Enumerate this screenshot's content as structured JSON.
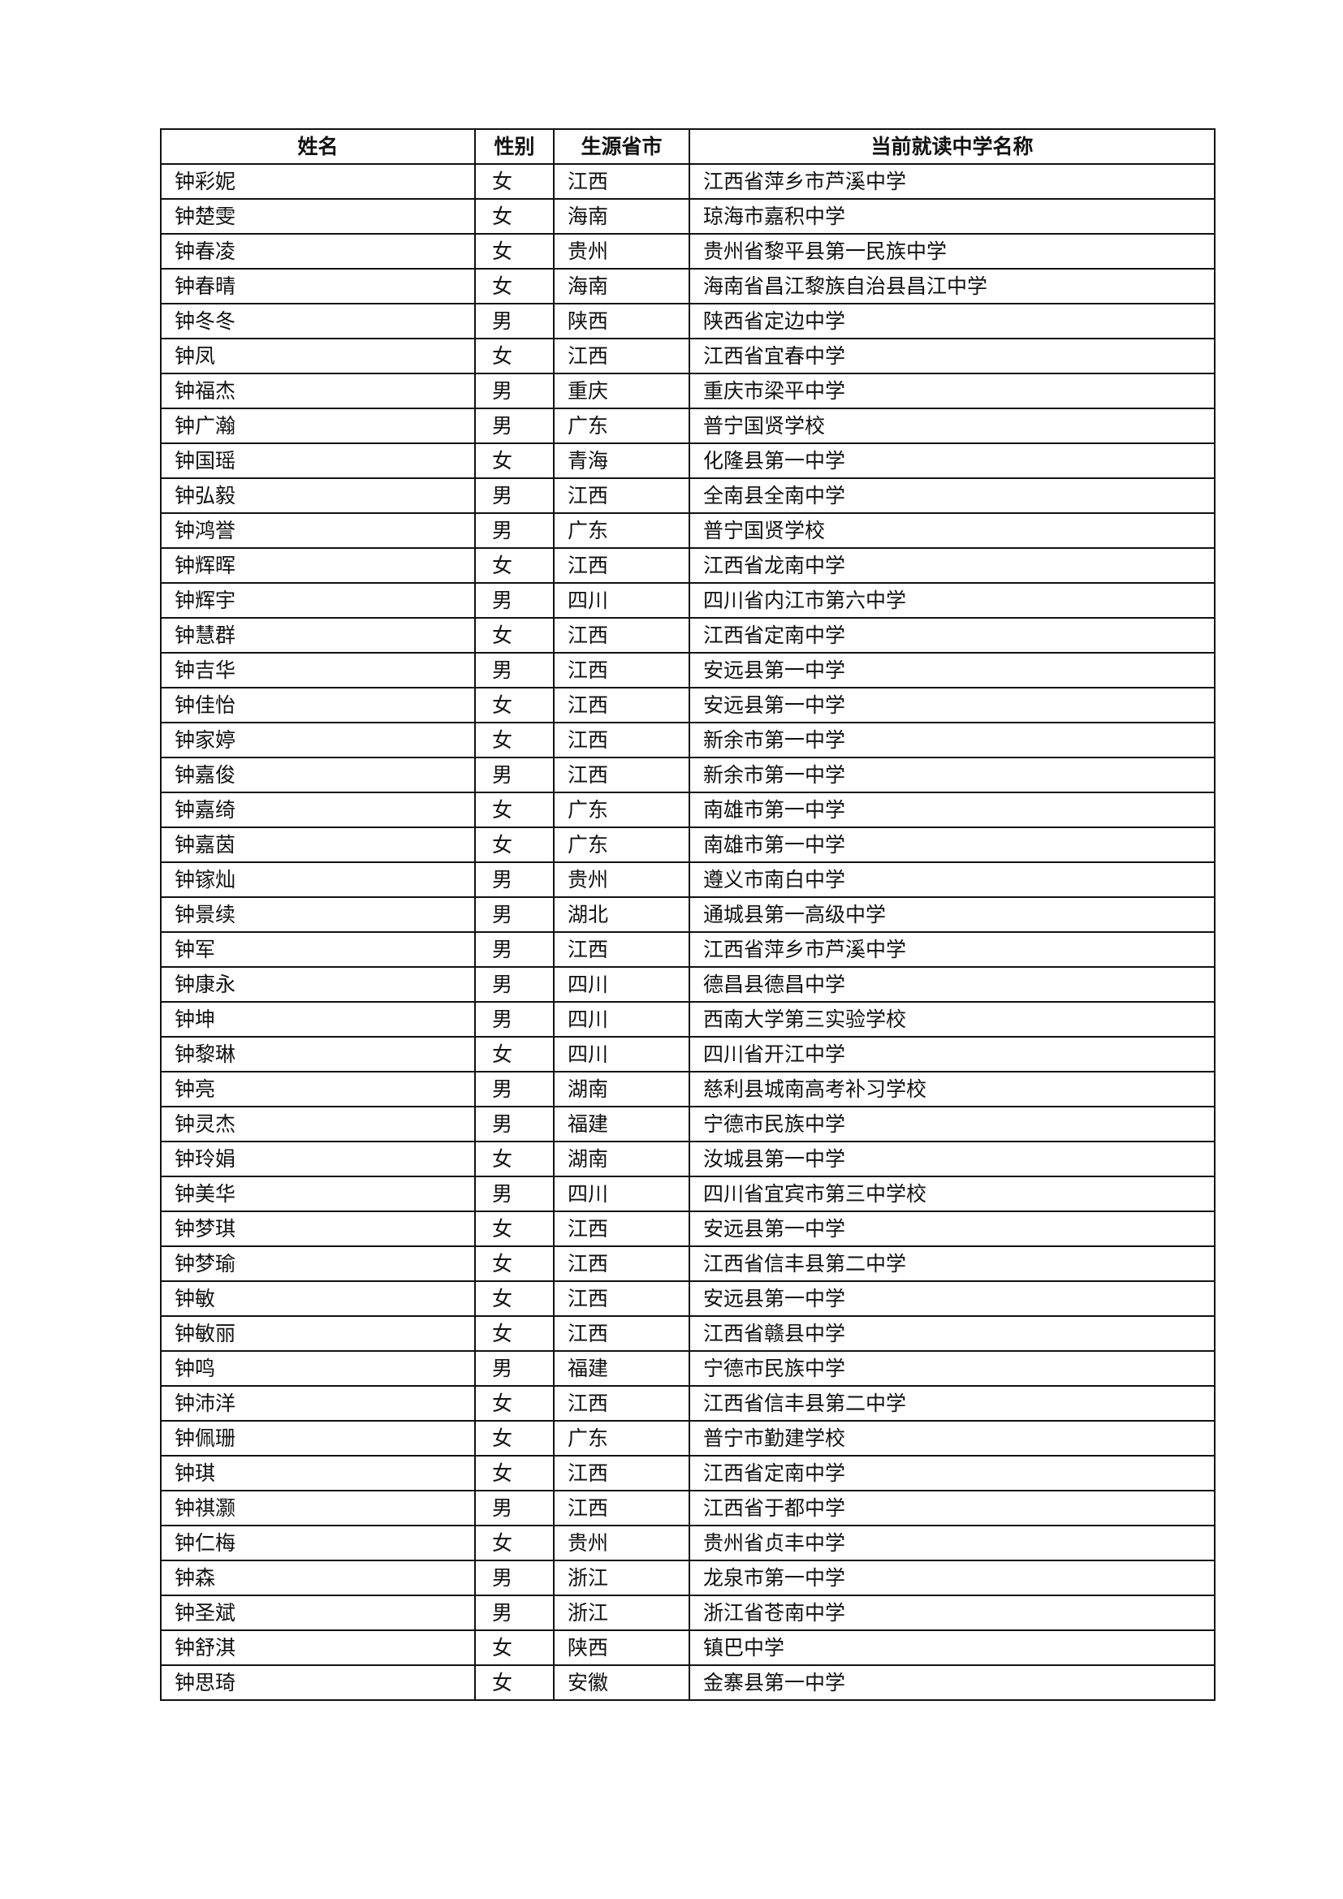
{
  "headers": [
    "姓名",
    "性别",
    "生源省市",
    "当前就读中学名称"
  ],
  "rows": [
    [
      "钟彩妮",
      "女",
      "江西",
      "江西省萍乡市芦溪中学"
    ],
    [
      "钟楚雯",
      "女",
      "海南",
      "琼海市嘉积中学"
    ],
    [
      "钟春凌",
      "女",
      "贵州",
      "贵州省黎平县第一民族中学"
    ],
    [
      "钟春晴",
      "女",
      "海南",
      "海南省昌江黎族自治县昌江中学"
    ],
    [
      "钟冬冬",
      "男",
      "陕西",
      "陕西省定边中学"
    ],
    [
      "钟凤",
      "女",
      "江西",
      "江西省宜春中学"
    ],
    [
      "钟福杰",
      "男",
      "重庆",
      "重庆市梁平中学"
    ],
    [
      "钟广瀚",
      "男",
      "广东",
      "普宁国贤学校"
    ],
    [
      "钟国瑶",
      "女",
      "青海",
      "化隆县第一中学"
    ],
    [
      "钟弘毅",
      "男",
      "江西",
      "全南县全南中学"
    ],
    [
      "钟鸿誉",
      "男",
      "广东",
      "普宁国贤学校"
    ],
    [
      "钟辉晖",
      "女",
      "江西",
      "江西省龙南中学"
    ],
    [
      "钟辉宇",
      "男",
      "四川",
      "四川省内江市第六中学"
    ],
    [
      "钟慧群",
      "女",
      "江西",
      "江西省定南中学"
    ],
    [
      "钟吉华",
      "男",
      "江西",
      "安远县第一中学"
    ],
    [
      "钟佳怡",
      "女",
      "江西",
      "安远县第一中学"
    ],
    [
      "钟家婷",
      "女",
      "江西",
      "新余市第一中学"
    ],
    [
      "钟嘉俊",
      "男",
      "江西",
      "新余市第一中学"
    ],
    [
      "钟嘉绮",
      "女",
      "广东",
      "南雄市第一中学"
    ],
    [
      "钟嘉茵",
      "女",
      "广东",
      "南雄市第一中学"
    ],
    [
      "钟镓灿",
      "男",
      "贵州",
      "遵义市南白中学"
    ],
    [
      "钟景续",
      "男",
      "湖北",
      "通城县第一高级中学"
    ],
    [
      "钟军",
      "男",
      "江西",
      "江西省萍乡市芦溪中学"
    ],
    [
      "钟康永",
      "男",
      "四川",
      "德昌县德昌中学"
    ],
    [
      "钟坤",
      "男",
      "四川",
      "西南大学第三实验学校"
    ],
    [
      "钟黎琳",
      "女",
      "四川",
      "四川省开江中学"
    ],
    [
      "钟亮",
      "男",
      "湖南",
      "慈利县城南高考补习学校"
    ],
    [
      "钟灵杰",
      "男",
      "福建",
      "宁德市民族中学"
    ],
    [
      "钟玲娟",
      "女",
      "湖南",
      "汝城县第一中学"
    ],
    [
      "钟美华",
      "男",
      "四川",
      "四川省宜宾市第三中学校"
    ],
    [
      "钟梦琪",
      "女",
      "江西",
      "安远县第一中学"
    ],
    [
      "钟梦瑜",
      "女",
      "江西",
      "江西省信丰县第二中学"
    ],
    [
      "钟敏",
      "女",
      "江西",
      "安远县第一中学"
    ],
    [
      "钟敏丽",
      "女",
      "江西",
      "江西省赣县中学"
    ],
    [
      "钟鸣",
      "男",
      "福建",
      "宁德市民族中学"
    ],
    [
      "钟沛洋",
      "女",
      "江西",
      "江西省信丰县第二中学"
    ],
    [
      "钟佩珊",
      "女",
      "广东",
      "普宁市勤建学校"
    ],
    [
      "钟琪",
      "女",
      "江西",
      "江西省定南中学"
    ],
    [
      "钟祺灏",
      "男",
      "江西",
      "江西省于都中学"
    ],
    [
      "钟仁梅",
      "女",
      "贵州",
      "贵州省贞丰中学"
    ],
    [
      "钟森",
      "男",
      "浙江",
      "龙泉市第一中学"
    ],
    [
      "钟圣斌",
      "男",
      "浙江",
      "浙江省苍南中学"
    ],
    [
      "钟舒淇",
      "女",
      "陕西",
      "镇巴中学"
    ],
    [
      "钟思琦",
      "女",
      "安徽",
      "金寨县第一中学"
    ]
  ]
}
